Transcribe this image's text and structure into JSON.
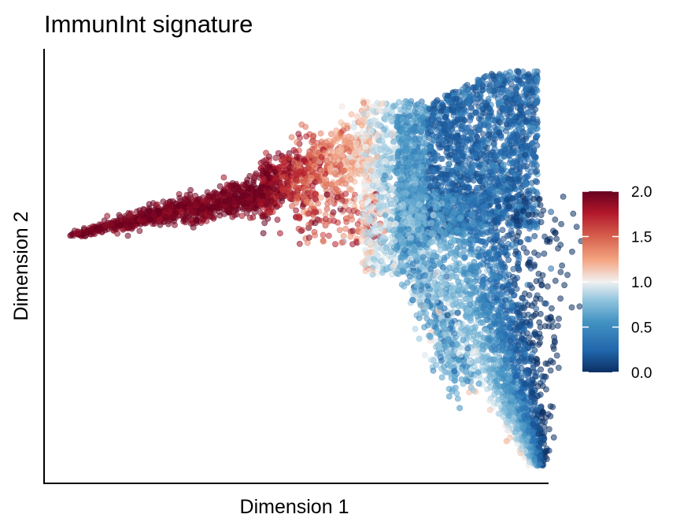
{
  "chart_data": {
    "type": "scatter",
    "title": "ImmunInt signature",
    "xlabel": "Dimension 1",
    "ylabel": "Dimension 2",
    "x_ticks_shown": false,
    "y_ticks_shown": false,
    "grid": false,
    "legend": {
      "type": "colorbar",
      "placement": "right",
      "range": [
        0.0,
        2.0
      ],
      "ticks": [
        "0.0",
        "0.5",
        "1.0",
        "1.5",
        "2.0"
      ],
      "colors": [
        "#0b2f63",
        "#2166ac",
        "#4393c3",
        "#92c5de",
        "#f1f1f1",
        "#f4a582",
        "#d6604d",
        "#b2182b",
        "#67001f"
      ]
    },
    "xlim": [
      0,
      1
    ],
    "ylim": [
      0,
      1
    ],
    "structure": {
      "left_arm": {
        "from": [
          0.05,
          0.57
        ],
        "to": [
          0.44,
          0.68
        ],
        "value": 1.95
      },
      "junction": {
        "center": [
          0.6,
          0.78
        ],
        "value_range": [
          0.7,
          1.7
        ]
      },
      "top_lobe": {
        "center": [
          0.86,
          0.85
        ],
        "value": 0.15
      },
      "lower_arm": {
        "from": [
          0.8,
          0.65
        ],
        "to": [
          0.98,
          0.04
        ],
        "value_range": [
          0.1,
          0.6
        ]
      }
    },
    "point_count_approx": 7000
  }
}
